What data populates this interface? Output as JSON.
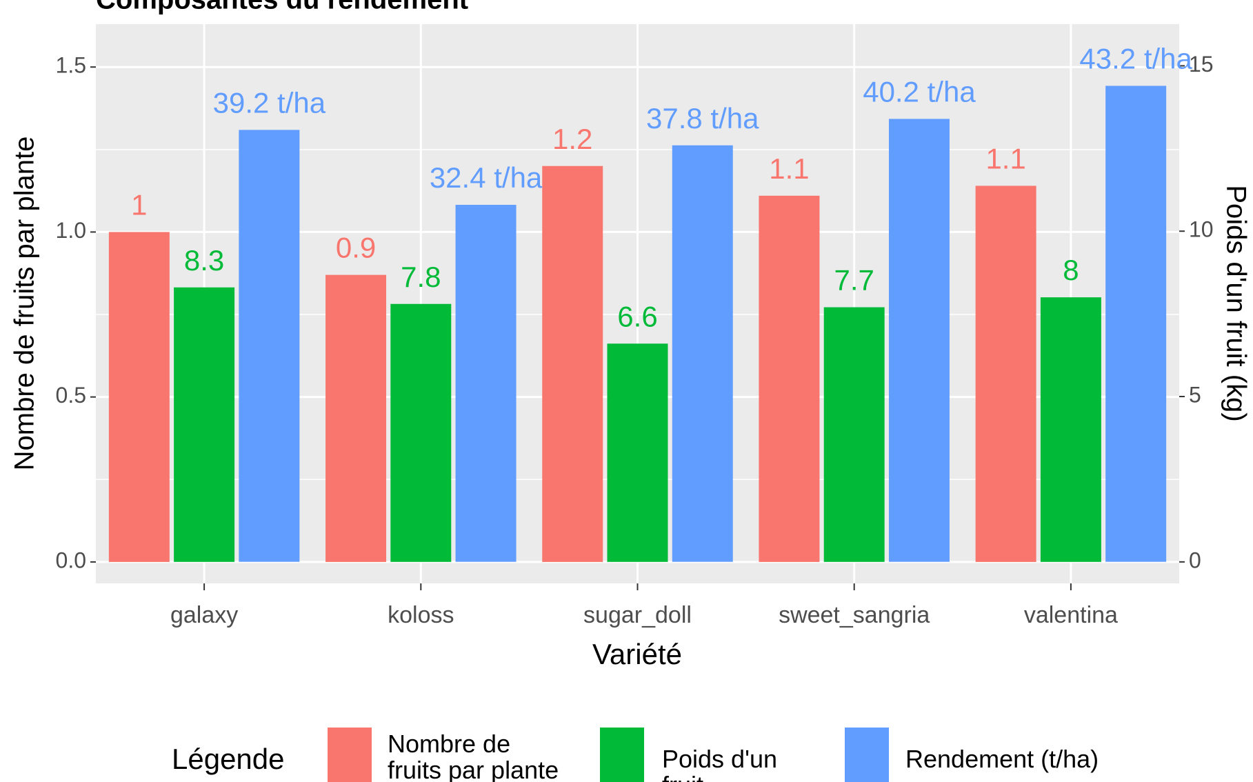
{
  "chart_data": {
    "type": "bar",
    "title": "Composantes du rendement",
    "xlabel": "Variété",
    "ylabel": "Nombre de fruits par plante",
    "y2label": "Poids d'un fruit (kg)",
    "legend_title": "Légende",
    "categories": [
      "galaxy",
      "koloss",
      "sugar_doll",
      "sweet_sangria",
      "valentina"
    ],
    "series": [
      {
        "name": "Nombre de fruits par plante",
        "color": "#F8766D",
        "values": [
          1,
          0.87,
          1.2,
          1.11,
          1.14
        ],
        "value_labels": [
          "1",
          "0.9",
          "1.2",
          "1.1",
          "1.1"
        ]
      },
      {
        "name": "Poids d'un fruit",
        "color": "#00BA38",
        "axis": "y2",
        "values": [
          8.3,
          7.8,
          6.6,
          7.7,
          8
        ]
      },
      {
        "name": "Rendement (t/ha)",
        "color": "#619CFF",
        "axis": "y3",
        "values": [
          39.2,
          32.4,
          37.8,
          40.2,
          43.2
        ],
        "value_labels": [
          "39.2 t/ha",
          "32.4 t/ha",
          "37.8 t/ha",
          "40.2 t/ha",
          "43.2 t/ha"
        ]
      }
    ],
    "ylim": [
      -0.065,
      1.63
    ],
    "yticks": [
      {
        "value": 0,
        "label": "0.0"
      },
      0.5,
      {
        "value": 1,
        "label": "1.0"
      },
      1.5
    ],
    "y2lim": [
      -0.65,
      16.26
    ],
    "y2ticks": [
      0,
      5,
      10,
      15
    ],
    "y3lim": [
      -1.96,
      48.8
    ],
    "grid": true,
    "legend": "bottom"
  }
}
